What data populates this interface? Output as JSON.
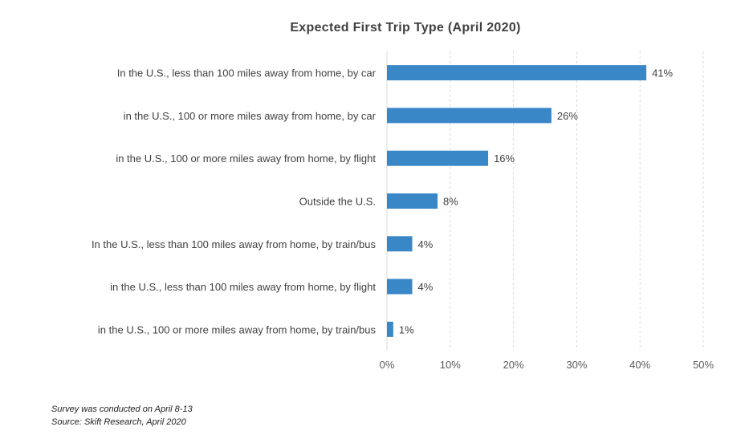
{
  "chart_data": {
    "type": "bar",
    "orientation": "horizontal",
    "title": "Expected First Trip Type (April 2020)",
    "categories": [
      "In the U.S., less than 100 miles away from home, by car",
      "in the U.S., 100 or more miles away from home, by car",
      "in the U.S., 100 or more miles away from home, by flight",
      "Outside the U.S.",
      "In the U.S., less than 100 miles away from home, by train/bus",
      "in the U.S., less than 100 miles away from home, by flight",
      "in the U.S., 100 or more miles away from home, by train/bus"
    ],
    "values": [
      41,
      26,
      16,
      8,
      4,
      4,
      1
    ],
    "data_labels": [
      "41%",
      "26%",
      "16%",
      "8%",
      "4%",
      "4%",
      "1%"
    ],
    "xlim": [
      0,
      50
    ],
    "x_ticks": [
      "0%",
      "10%",
      "20%",
      "30%",
      "40%",
      "50%"
    ],
    "grid": "vertical dashed",
    "bar_color": "#3A87C8"
  },
  "footnotes": {
    "survey": "Survey was conducted on April 8-13",
    "source": "Source: Skift Research, April 2020"
  }
}
